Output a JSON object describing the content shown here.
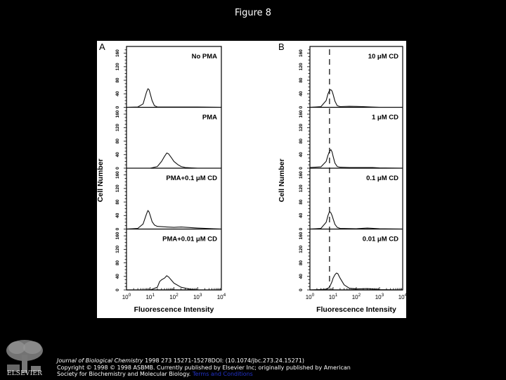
{
  "slide": {
    "title": "Figure 8"
  },
  "footer": {
    "logo_text": "ELSEVIER",
    "journal": "Journal of Biological Chemistry",
    "citation_rest": " 1998 273 15271-15278DOI: (10.1074/jbc.273.24.15271)",
    "copyright_line": "Copyright © 1998 © 1998 ASBMB. Currently published by Elsevier Inc; originally published by American",
    "society_line": "Society for Biochemistry and Molecular Biology.",
    "terms_link": "Terms and Conditions"
  },
  "figure": {
    "panel_a_letter": "A",
    "panel_b_letter": "B",
    "ylabel": "Cell Number",
    "xlabel": "Fluorescence Intensity",
    "y_ticks": [
      "0",
      "40",
      "80",
      "120",
      "160"
    ],
    "x_ticks": [
      "10",
      "10",
      "10",
      "10",
      "10"
    ],
    "x_tick_exps": [
      "0",
      "1",
      "2",
      "3",
      "4"
    ],
    "panel_a_labels": [
      "No PMA",
      "PMA",
      "PMA+0.1 μM CD",
      "PMA+0.01 μM CD"
    ],
    "panel_b_labels": [
      "10 μM CD",
      "1 μM CD",
      "0.1 μM CD",
      "0.01 μM CD"
    ]
  },
  "chart_data": [
    {
      "type": "line",
      "title": "A",
      "xlabel": "Fluorescence Intensity",
      "ylabel": "Cell Number",
      "xscale": "log",
      "xlim": [
        1,
        10000
      ],
      "ylim": [
        0,
        180
      ],
      "x_tick_labels": [
        "10^0",
        "10^1",
        "10^2",
        "10^3",
        "10^4"
      ],
      "y_tick_labels": [
        "0",
        "40",
        "80",
        "120",
        "160"
      ],
      "series": [
        {
          "name": "No PMA",
          "x": [
            1,
            3,
            5,
            7,
            8,
            9,
            10,
            12,
            15,
            20,
            50,
            100,
            1000,
            10000
          ],
          "values": [
            0,
            1,
            10,
            45,
            55,
            52,
            40,
            20,
            5,
            1,
            1,
            1,
            1,
            0
          ]
        },
        {
          "name": "PMA",
          "x": [
            1,
            10,
            20,
            30,
            40,
            50,
            60,
            80,
            100,
            150,
            200,
            300,
            1000,
            10000
          ],
          "values": [
            0,
            0,
            5,
            20,
            35,
            45,
            42,
            30,
            20,
            10,
            5,
            2,
            0,
            0
          ]
        },
        {
          "name": "PMA+0.1 μM CD",
          "x": [
            1,
            3,
            5,
            7,
            8,
            9,
            10,
            12,
            15,
            20,
            50,
            100,
            200,
            1000,
            10000
          ],
          "values": [
            0,
            2,
            15,
            45,
            55,
            50,
            40,
            22,
            12,
            8,
            6,
            5,
            6,
            3,
            0
          ]
        },
        {
          "name": "PMA+0.01 μM CD",
          "x": [
            1,
            10,
            20,
            25,
            30,
            40,
            50,
            60,
            80,
            100,
            200,
            500,
            1000,
            10000
          ],
          "values": [
            0,
            0,
            8,
            25,
            30,
            35,
            42,
            38,
            28,
            20,
            8,
            2,
            0,
            0
          ]
        }
      ]
    },
    {
      "type": "line",
      "title": "B",
      "xlabel": "Fluorescence Intensity",
      "ylabel": "Cell Number",
      "xscale": "log",
      "xlim": [
        1,
        10000
      ],
      "ylim": [
        0,
        180
      ],
      "x_tick_labels": [
        "10^0",
        "10^1",
        "10^2",
        "10^3",
        "10^4"
      ],
      "y_tick_labels": [
        "0",
        "40",
        "80",
        "120",
        "160"
      ],
      "reference_line_x": 7,
      "series": [
        {
          "name": "10 μM CD",
          "x": [
            1,
            3,
            5,
            6,
            7,
            8,
            9,
            10,
            12,
            15,
            20,
            50,
            200,
            1000,
            10000
          ],
          "values": [
            0,
            2,
            20,
            40,
            50,
            52,
            48,
            38,
            18,
            5,
            2,
            3,
            2,
            0,
            0
          ]
        },
        {
          "name": "1 μM CD",
          "x": [
            1,
            3,
            5,
            6,
            7,
            8,
            9,
            10,
            12,
            15,
            20,
            50,
            500,
            1000,
            10000
          ],
          "values": [
            2,
            4,
            20,
            38,
            50,
            55,
            48,
            35,
            15,
            5,
            3,
            2,
            2,
            1,
            0
          ]
        },
        {
          "name": "0.1 μM CD",
          "x": [
            1,
            3,
            5,
            6,
            7,
            8,
            9,
            10,
            12,
            15,
            20,
            100,
            300,
            1000,
            10000
          ],
          "values": [
            0,
            2,
            20,
            40,
            52,
            48,
            40,
            30,
            14,
            5,
            2,
            1,
            3,
            1,
            0
          ]
        },
        {
          "name": "0.01 μM CD",
          "x": [
            1,
            5,
            7,
            9,
            10,
            12,
            14,
            16,
            20,
            30,
            50,
            100,
            300,
            1000,
            10000
          ],
          "values": [
            0,
            2,
            8,
            25,
            35,
            45,
            50,
            48,
            35,
            15,
            5,
            3,
            4,
            1,
            0
          ]
        }
      ]
    }
  ]
}
